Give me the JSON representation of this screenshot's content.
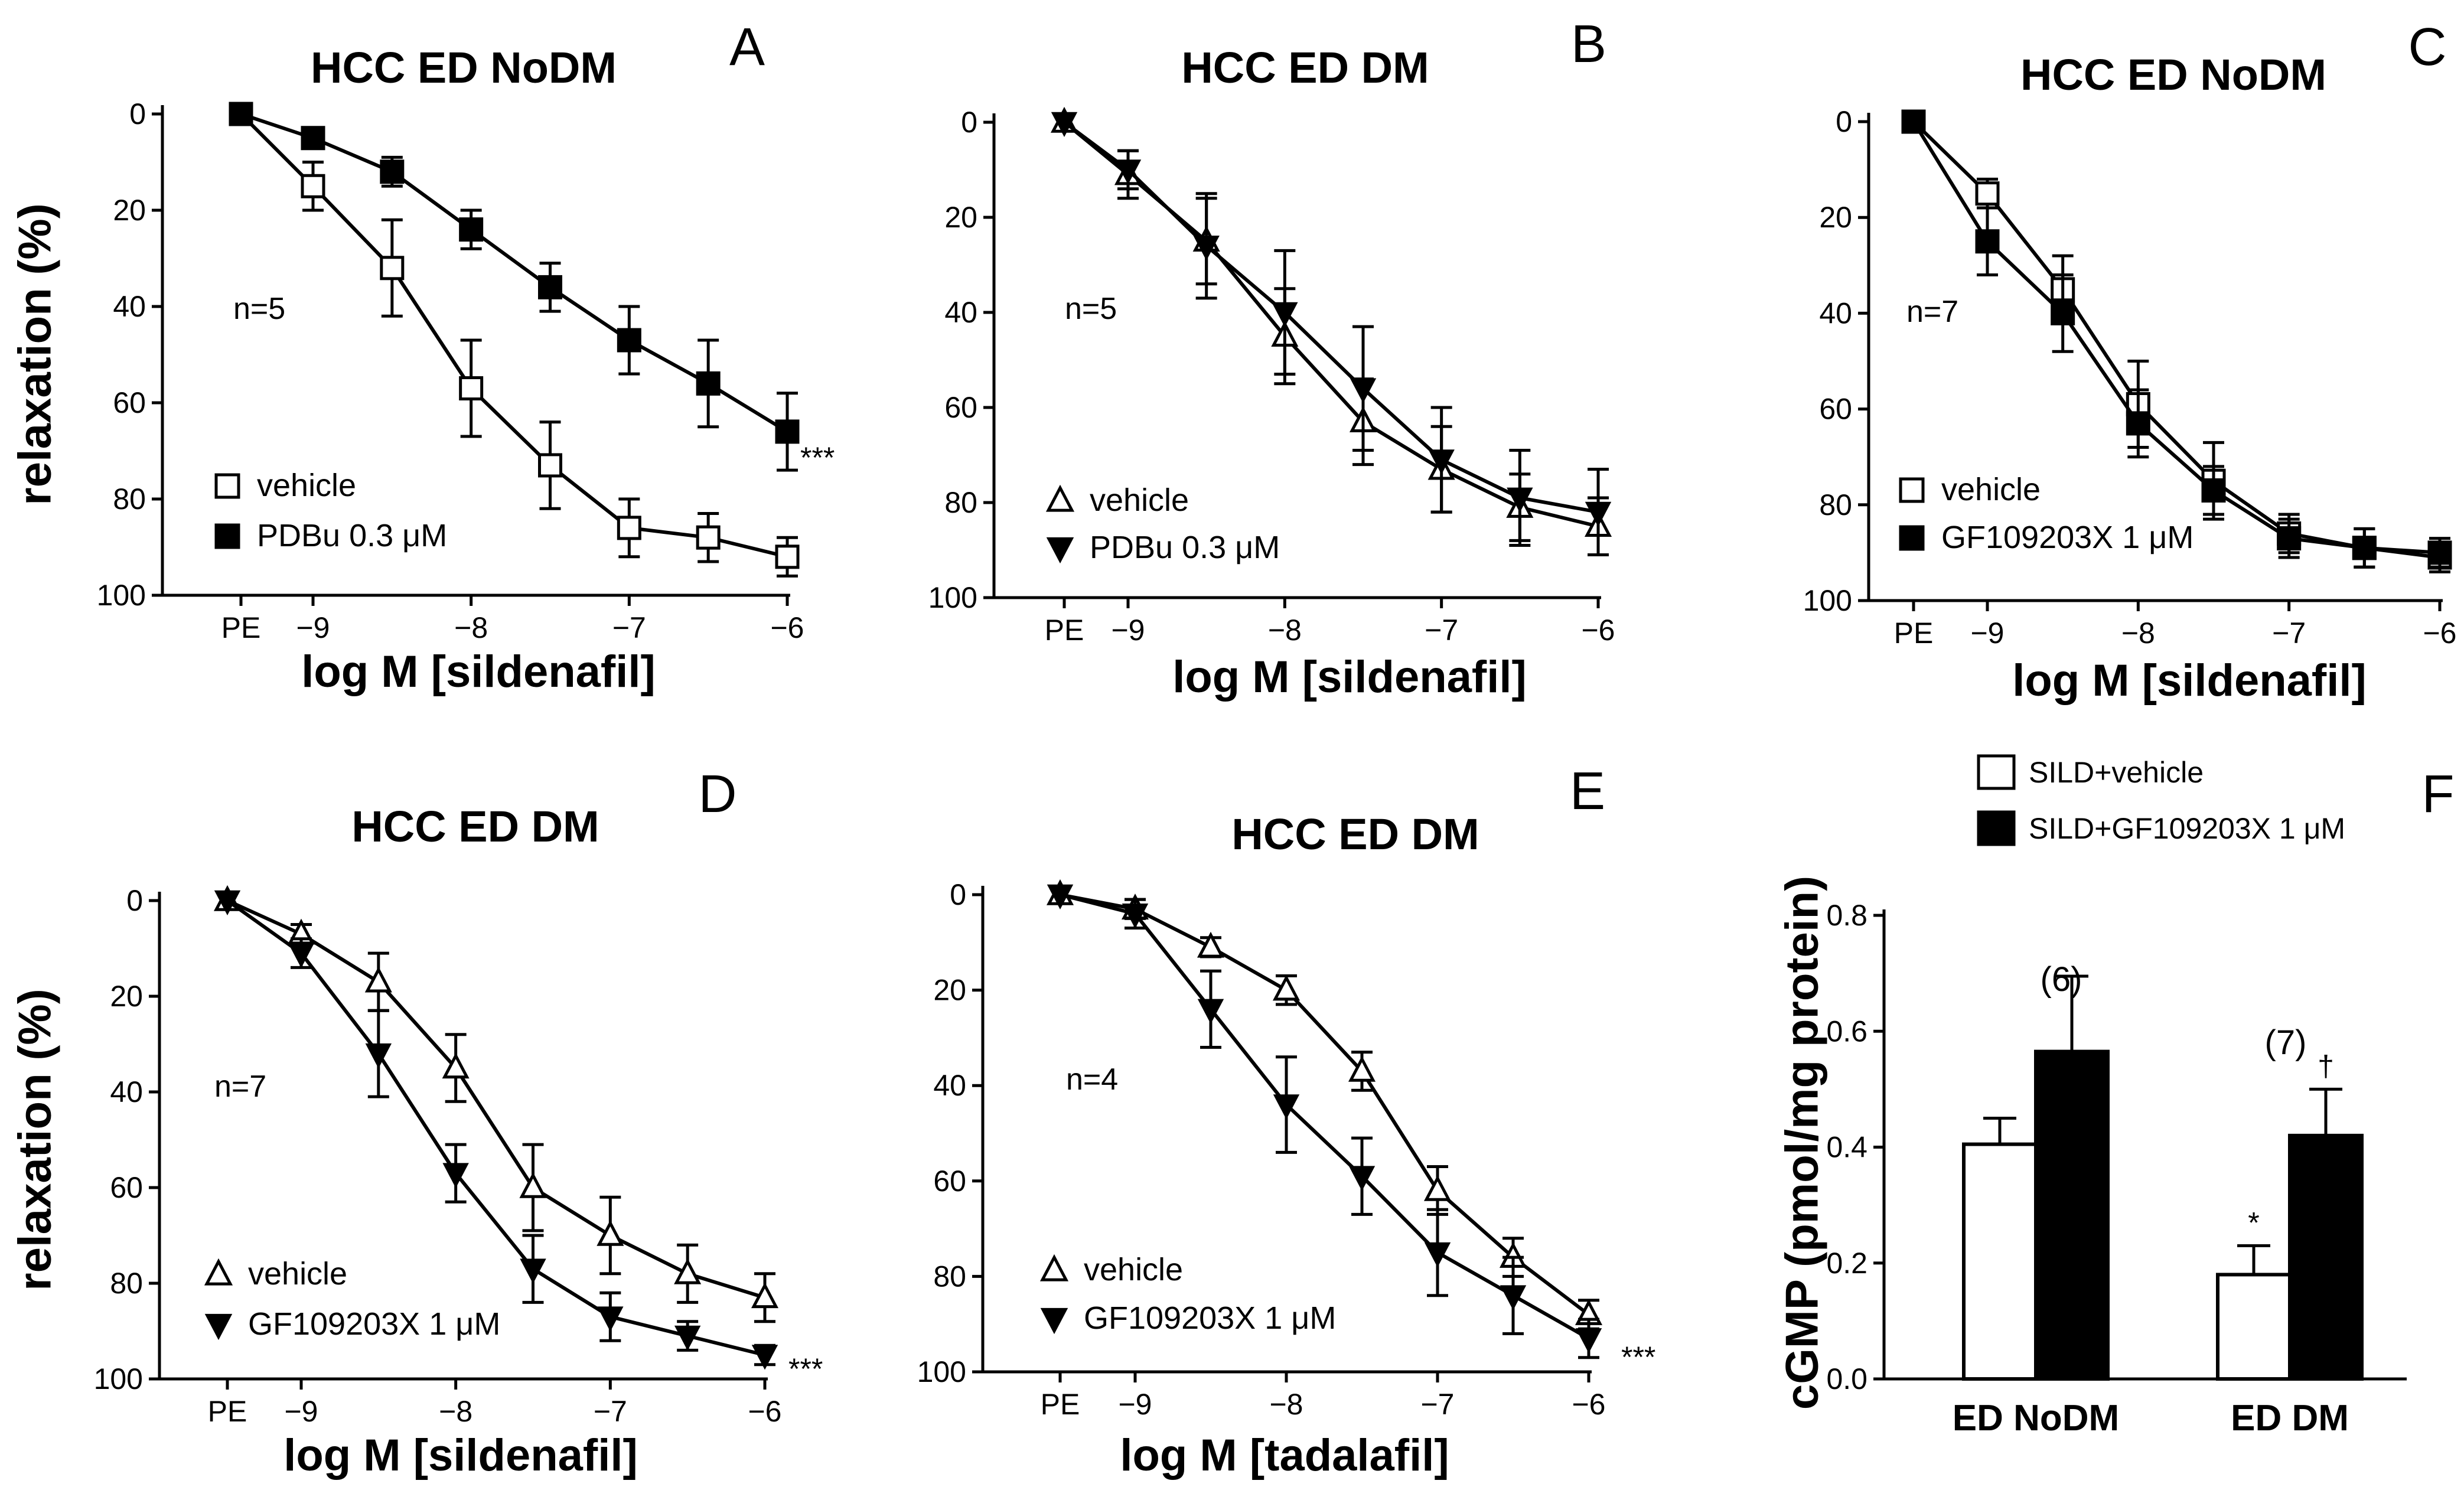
{
  "chart_data": [
    {
      "panel": "A",
      "type": "line",
      "title": "HCC ED NoDM",
      "xlabel": "log M [sildenafil]",
      "ylabel": "relaxation (%)",
      "x_categories": [
        "PE",
        "−9",
        "−8",
        "−7",
        "−6"
      ],
      "x": [
        "PE",
        -9,
        -8.5,
        -8,
        -7.5,
        -7,
        -6.5,
        -6
      ],
      "ylim": [
        0,
        100
      ],
      "y_inverted": true,
      "y_ticks": [
        "0",
        "20",
        "40",
        "60",
        "80",
        "100"
      ],
      "n_label": "n=5",
      "significance": "***",
      "series": [
        {
          "name": "vehicle",
          "marker": "open-square",
          "values": [
            0,
            15,
            32,
            57,
            73,
            86,
            88,
            92
          ],
          "errors": [
            0,
            5,
            10,
            10,
            9,
            6,
            5,
            4
          ]
        },
        {
          "name": "PDBu 0.3 μM",
          "marker": "filled-square",
          "values": [
            0,
            5,
            12,
            24,
            36,
            47,
            56,
            66
          ],
          "errors": [
            0,
            2,
            3,
            4,
            5,
            7,
            9,
            8
          ]
        }
      ]
    },
    {
      "panel": "B",
      "type": "line",
      "title": "HCC ED DM",
      "xlabel": "log M [sildenafil]",
      "ylabel": "",
      "x_categories": [
        "PE",
        "−9",
        "−8",
        "−7",
        "−6"
      ],
      "x": [
        "PE",
        -9,
        -8.5,
        -8,
        -7.5,
        -7,
        -6.5,
        -6
      ],
      "ylim": [
        0,
        100
      ],
      "y_inverted": true,
      "y_ticks": [
        "0",
        "20",
        "40",
        "60",
        "80",
        "100"
      ],
      "n_label": "n=5",
      "significance": "",
      "series": [
        {
          "name": "vehicle",
          "marker": "open-triangle",
          "values": [
            0,
            11,
            25,
            45,
            63,
            73,
            81,
            85
          ],
          "errors": [
            0,
            5,
            9,
            10,
            9,
            9,
            7,
            6
          ]
        },
        {
          "name": "PDBu 0.3 μM",
          "marker": "filled-triangle-down",
          "values": [
            0,
            10,
            26,
            40,
            56,
            71,
            79,
            82
          ],
          "errors": [
            0,
            4,
            11,
            13,
            13,
            11,
            10,
            9
          ]
        }
      ]
    },
    {
      "panel": "C",
      "type": "line",
      "title": "HCC ED NoDM",
      "xlabel": "log M [sildenafil]",
      "ylabel": "",
      "x_categories": [
        "PE",
        "−9",
        "−8",
        "−7",
        "−6"
      ],
      "x": [
        "PE",
        -9,
        -8.5,
        -8,
        -7.5,
        -7,
        -6.5,
        -6
      ],
      "ylim": [
        0,
        100
      ],
      "y_inverted": true,
      "y_ticks": [
        "0",
        "20",
        "40",
        "60",
        "80",
        "100"
      ],
      "n_label": "n=7",
      "significance": "",
      "series": [
        {
          "name": "vehicle",
          "marker": "open-square",
          "values": [
            0,
            15,
            35,
            59,
            75,
            86,
            89,
            91
          ],
          "errors": [
            0,
            3,
            7,
            9,
            8,
            4,
            4,
            3
          ]
        },
        {
          "name": "GF109203X 1 μM",
          "marker": "filled-square",
          "values": [
            0,
            25,
            40,
            63,
            77,
            87,
            89,
            90
          ],
          "errors": [
            0,
            7,
            8,
            7,
            5,
            4,
            4,
            3
          ]
        }
      ]
    },
    {
      "panel": "D",
      "type": "line",
      "title": "HCC ED DM",
      "xlabel": "log M [sildenafil]",
      "ylabel": "relaxation (%)",
      "x_categories": [
        "PE",
        "−9",
        "−8",
        "−7",
        "−6"
      ],
      "x": [
        "PE",
        -9,
        -8.5,
        -8,
        -7.5,
        -7,
        -6.5,
        -6
      ],
      "ylim": [
        0,
        100
      ],
      "y_inverted": true,
      "y_ticks": [
        "0",
        "20",
        "40",
        "60",
        "80",
        "100"
      ],
      "n_label": "n=7",
      "significance": "***",
      "series": [
        {
          "name": "vehicle",
          "marker": "open-triangle",
          "values": [
            0,
            7,
            17,
            35,
            60,
            70,
            78,
            83
          ],
          "errors": [
            0,
            2,
            6,
            7,
            9,
            8,
            6,
            5
          ]
        },
        {
          "name": "GF109203X 1 μM",
          "marker": "filled-triangle-down",
          "values": [
            0,
            11,
            32,
            57,
            77,
            87,
            91,
            95
          ],
          "errors": [
            0,
            3,
            9,
            6,
            7,
            5,
            3,
            2
          ]
        }
      ]
    },
    {
      "panel": "E",
      "type": "line",
      "title": "HCC ED DM",
      "xlabel": "log M [tadalafil]",
      "ylabel": "",
      "x_categories": [
        "PE",
        "−9",
        "−8",
        "−7",
        "−6"
      ],
      "x": [
        "PE",
        -9,
        -8.5,
        -8,
        -7.5,
        -7,
        -6.5,
        -6
      ],
      "ylim": [
        0,
        100
      ],
      "y_inverted": true,
      "y_ticks": [
        "0",
        "20",
        "40",
        "60",
        "80",
        "100"
      ],
      "n_label": "n=4",
      "significance": "***",
      "series": [
        {
          "name": "vehicle",
          "marker": "open-triangle",
          "values": [
            0,
            3,
            11,
            20,
            37,
            62,
            76,
            88
          ],
          "errors": [
            0,
            2,
            2,
            3,
            4,
            5,
            4,
            3
          ]
        },
        {
          "name": "GF109203X 1 μM",
          "marker": "filled-triangle-down",
          "values": [
            0,
            4,
            24,
            44,
            59,
            75,
            84,
            93
          ],
          "errors": [
            0,
            3,
            8,
            10,
            8,
            9,
            8,
            4
          ]
        }
      ]
    },
    {
      "panel": "F",
      "type": "bar",
      "title": "",
      "xlabel": "",
      "ylabel": "cGMP (pmol/mg protein)",
      "categories": [
        "ED NoDM",
        "ED DM"
      ],
      "ylim": [
        0,
        0.8
      ],
      "y_ticks": [
        "0.0",
        "0.2",
        "0.4",
        "0.6",
        "0.8"
      ],
      "group_n_labels": [
        "(6)",
        "(7)"
      ],
      "series": [
        {
          "name": "SILD+vehicle",
          "fill": "open",
          "values": [
            0.405,
            0.18
          ],
          "errors": [
            0.045,
            0.05
          ],
          "markers": [
            "",
            "*"
          ]
        },
        {
          "name": "SILD+GF109203X  1 μM",
          "fill": "filled",
          "values": [
            0.565,
            0.42
          ],
          "errors": [
            0.13,
            0.08
          ],
          "markers": [
            "",
            "†"
          ]
        }
      ]
    }
  ]
}
